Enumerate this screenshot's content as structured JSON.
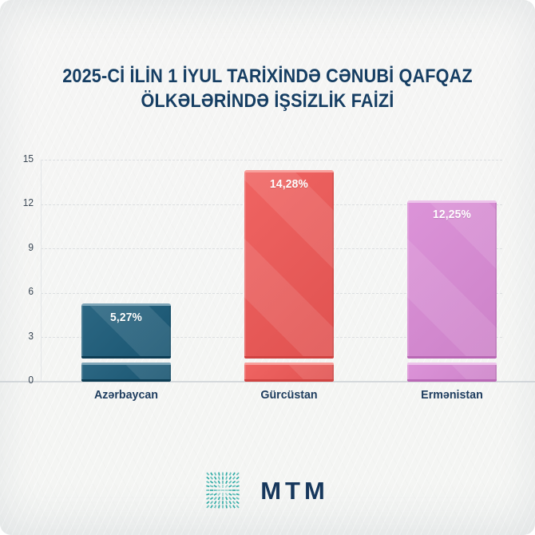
{
  "title": {
    "line1": "2025-Cİ İLİN 1 İYUL TARİXİNDƏ CƏNUBİ QAFQAZ",
    "line2": "ÖLKƏLƏRİNDƏ İŞSİZLİK FAİZİ"
  },
  "chart_data": {
    "type": "bar",
    "title": "2025-Cİ İLİN 1 İYUL TARİXİNDƏ CƏNUBİ QAFQAZ ÖLKƏLƏRİNDƏ İŞSİZLİK FAİZİ",
    "categories": [
      "Azərbaycan",
      "Gürcüstan",
      "Ermənistan"
    ],
    "values": [
      5.27,
      14.28,
      12.25
    ],
    "y_ticks": [
      0,
      3,
      6,
      9,
      12,
      15
    ],
    "ylim": [
      0,
      15
    ],
    "xlabel": "",
    "ylabel": "",
    "grid": "horizontal dashed, solid baseline at 0",
    "legend": "none",
    "bars": [
      {
        "label": "Azərbaycan",
        "value": 5.27,
        "value_label": "5,27%",
        "fill": "#1a5a78",
        "bevel_light": "#7fa6b8",
        "bevel_dark": "#0d3d54"
      },
      {
        "label": "Gürcüstan",
        "value": 14.28,
        "value_label": "14,28%",
        "fill": "#ee5755",
        "bevel_light": "#f8a09c",
        "bevel_dark": "#d04341"
      },
      {
        "label": "Ermənistan",
        "value": 12.25,
        "value_label": "12,25%",
        "fill": "#d98ad5",
        "bevel_light": "#edc4eb",
        "bevel_dark": "#b968b5"
      }
    ]
  },
  "footer": {
    "logo_text": "MTM",
    "logo_icon": "mtm-burst-logo",
    "logo_color": "#2aa9a3",
    "logo_text_color": "#16375c"
  }
}
